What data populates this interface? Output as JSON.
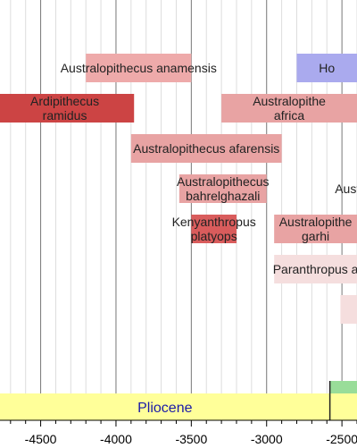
{
  "chart_data": {
    "type": "timeline",
    "title": "",
    "xlabel": "",
    "ylabel": "",
    "x_unit": "years (thousands)",
    "xlim": [
      -4770,
      -2400
    ],
    "grid": true,
    "tick_labels": [
      "-4500",
      "-4000",
      "-3500",
      "-3000",
      "-2500"
    ],
    "ticks": [
      -4500,
      -4000,
      -3500,
      -3000,
      -2500
    ],
    "species": [
      {
        "name": "Australopithecus anamensis",
        "lines": [
          "Australopithecus anamensis"
        ],
        "start": -4200,
        "end": -3500,
        "row": 0,
        "color": "#eeaaaa"
      },
      {
        "name": "Homo",
        "lines": [
          "Ho"
        ],
        "start": -2800,
        "end": -2400,
        "row": 0,
        "color": "#aaaaee"
      },
      {
        "name": "Ardipithecus ramidus",
        "lines": [
          "Ardipithecus",
          "ramidus"
        ],
        "start": -4800,
        "end": -3880,
        "row": 1,
        "color": "#cc4444"
      },
      {
        "name": "Australopithecus africanus",
        "lines": [
          "Australopithe",
          "africa"
        ],
        "start": -3300,
        "end": -2400,
        "row": 1,
        "color": "#e8a3a3"
      },
      {
        "name": "Australopithecus afarensis",
        "lines": [
          "Australopithecus afarensis"
        ],
        "start": -3900,
        "end": -2900,
        "row": 2,
        "color": "#e8a3a3"
      },
      {
        "name": "Australopithecus bahrelghazali",
        "lines": [
          "Australopithecus",
          "bahrelghazali"
        ],
        "start": -3580,
        "end": -3000,
        "row": 3,
        "color": "#e8a3a3"
      },
      {
        "name": "Austr",
        "lines": [
          "Austr"
        ],
        "start": -2500,
        "end": -2400,
        "row": 3,
        "color": "none"
      },
      {
        "name": "Kenyanthropus platyops",
        "lines": [
          "Kenyanthropus",
          "platyops"
        ],
        "start": -3500,
        "end": -3200,
        "row": 4,
        "color": "#d95c5c"
      },
      {
        "name": "Australopithecus garhi",
        "lines": [
          "Australopithe",
          "garhi"
        ],
        "start": -2950,
        "end": -2400,
        "row": 4,
        "color": "#e8a3a3"
      },
      {
        "name": "Paranthropus aethiopicus",
        "lines": [
          "Paranthropus a"
        ],
        "start": -2950,
        "end": -2400,
        "row": 5,
        "color": "#f5dede"
      },
      {
        "name": "",
        "lines": [],
        "start": -2510,
        "end": -2400,
        "row": 6,
        "color": "#f5dede"
      }
    ],
    "epochs": [
      {
        "name": "Pliocene",
        "start": -5000,
        "end": -2580,
        "color": "#ffff99",
        "text_color": "#1a1aa8"
      },
      {
        "name": "",
        "start": -2580,
        "end": -2400,
        "color": "#ffff99",
        "text_color": "#000000"
      }
    ],
    "top_band": {
      "start": -2580,
      "end": -2400,
      "color": "#99dd99"
    },
    "boundary_marker": -2580
  }
}
